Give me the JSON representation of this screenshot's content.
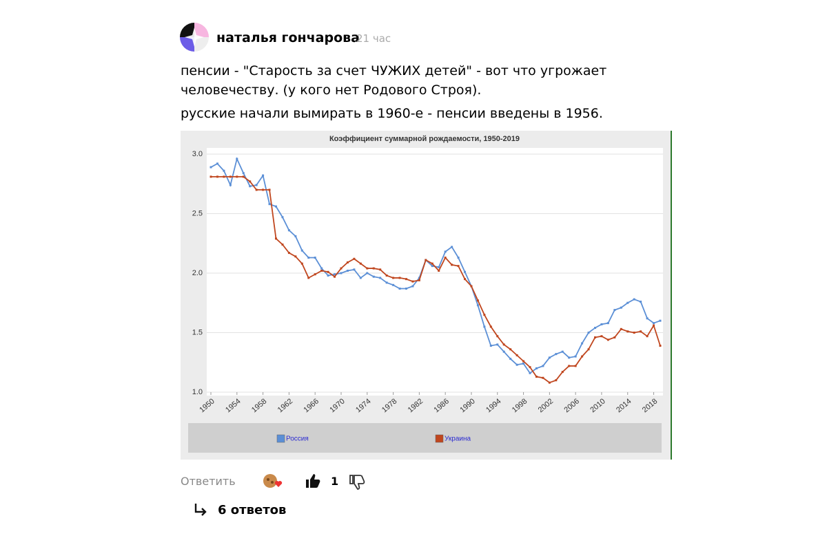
{
  "comment": {
    "author": "наталья гончарова",
    "time": "21 час",
    "paragraphs": [
      "пенсии - \"Старость за счет ЧУЖИХ детей\" - вот что угрожает человечеству. (у кого нет Родового Строя).",
      "русские начали вымирать в 1960-е - пенсии введены в 1956."
    ],
    "reply": "Ответить",
    "likes": "1",
    "replies": "6 ответов"
  },
  "chart_data": {
    "type": "line",
    "title": "Коэффициент суммарной рождаемости, 1950-2019",
    "x": [
      1950,
      1951,
      1952,
      1953,
      1954,
      1955,
      1956,
      1957,
      1958,
      1959,
      1960,
      1961,
      1962,
      1963,
      1964,
      1965,
      1966,
      1967,
      1968,
      1969,
      1970,
      1971,
      1972,
      1973,
      1974,
      1975,
      1976,
      1977,
      1978,
      1979,
      1980,
      1981,
      1982,
      1983,
      1984,
      1985,
      1986,
      1987,
      1988,
      1989,
      1990,
      1991,
      1992,
      1993,
      1994,
      1995,
      1996,
      1997,
      1998,
      1999,
      2000,
      2001,
      2002,
      2003,
      2004,
      2005,
      2006,
      2007,
      2008,
      2009,
      2010,
      2011,
      2012,
      2013,
      2014,
      2015,
      2016,
      2017,
      2018,
      2019
    ],
    "series": [
      {
        "name": "Россия",
        "color": "#5b8fd6",
        "values": [
          2.89,
          2.92,
          2.86,
          2.74,
          2.96,
          2.84,
          2.73,
          2.74,
          2.82,
          2.58,
          2.56,
          2.47,
          2.36,
          2.31,
          2.19,
          2.13,
          2.13,
          2.04,
          1.98,
          1.99,
          2.0,
          2.02,
          2.03,
          1.96,
          2.0,
          1.97,
          1.96,
          1.92,
          1.9,
          1.87,
          1.87,
          1.89,
          1.96,
          2.11,
          2.06,
          2.05,
          2.18,
          2.22,
          2.13,
          2.01,
          1.89,
          1.73,
          1.55,
          1.39,
          1.4,
          1.34,
          1.28,
          1.23,
          1.24,
          1.16,
          1.2,
          1.22,
          1.29,
          1.32,
          1.34,
          1.29,
          1.3,
          1.41,
          1.5,
          1.54,
          1.57,
          1.58,
          1.69,
          1.71,
          1.75,
          1.78,
          1.76,
          1.62,
          1.58,
          1.6
        ]
      },
      {
        "name": "Украина",
        "color": "#c0461e",
        "values": [
          2.81,
          2.81,
          2.81,
          2.81,
          2.81,
          2.81,
          2.77,
          2.7,
          2.7,
          2.7,
          2.29,
          2.24,
          2.17,
          2.14,
          2.08,
          1.96,
          1.99,
          2.02,
          2.01,
          1.97,
          2.04,
          2.09,
          2.12,
          2.08,
          2.04,
          2.04,
          2.03,
          1.98,
          1.96,
          1.96,
          1.95,
          1.93,
          1.94,
          2.11,
          2.08,
          2.02,
          2.13,
          2.07,
          2.06,
          1.95,
          1.89,
          1.77,
          1.65,
          1.55,
          1.47,
          1.4,
          1.36,
          1.31,
          1.26,
          1.21,
          1.13,
          1.12,
          1.08,
          1.1,
          1.17,
          1.22,
          1.22,
          1.3,
          1.36,
          1.46,
          1.47,
          1.44,
          1.46,
          1.53,
          1.51,
          1.5,
          1.51,
          1.47,
          1.56,
          1.39
        ]
      }
    ],
    "xlim": [
      1950,
      2019
    ],
    "xticks": [
      1950,
      1954,
      1958,
      1962,
      1966,
      1970,
      1974,
      1978,
      1982,
      1986,
      1990,
      1994,
      1998,
      2002,
      2006,
      2010,
      2014,
      2018
    ],
    "ylim": [
      1,
      3
    ],
    "yticks": [
      {
        "value": 1,
        "label": "1.0"
      },
      {
        "value": 1.5,
        "label": "1.5"
      },
      {
        "value": 2,
        "label": "2.0"
      },
      {
        "value": 2.5,
        "label": "2.5"
      },
      {
        "value": 3,
        "label": "3.0"
      }
    ],
    "grid": true
  }
}
